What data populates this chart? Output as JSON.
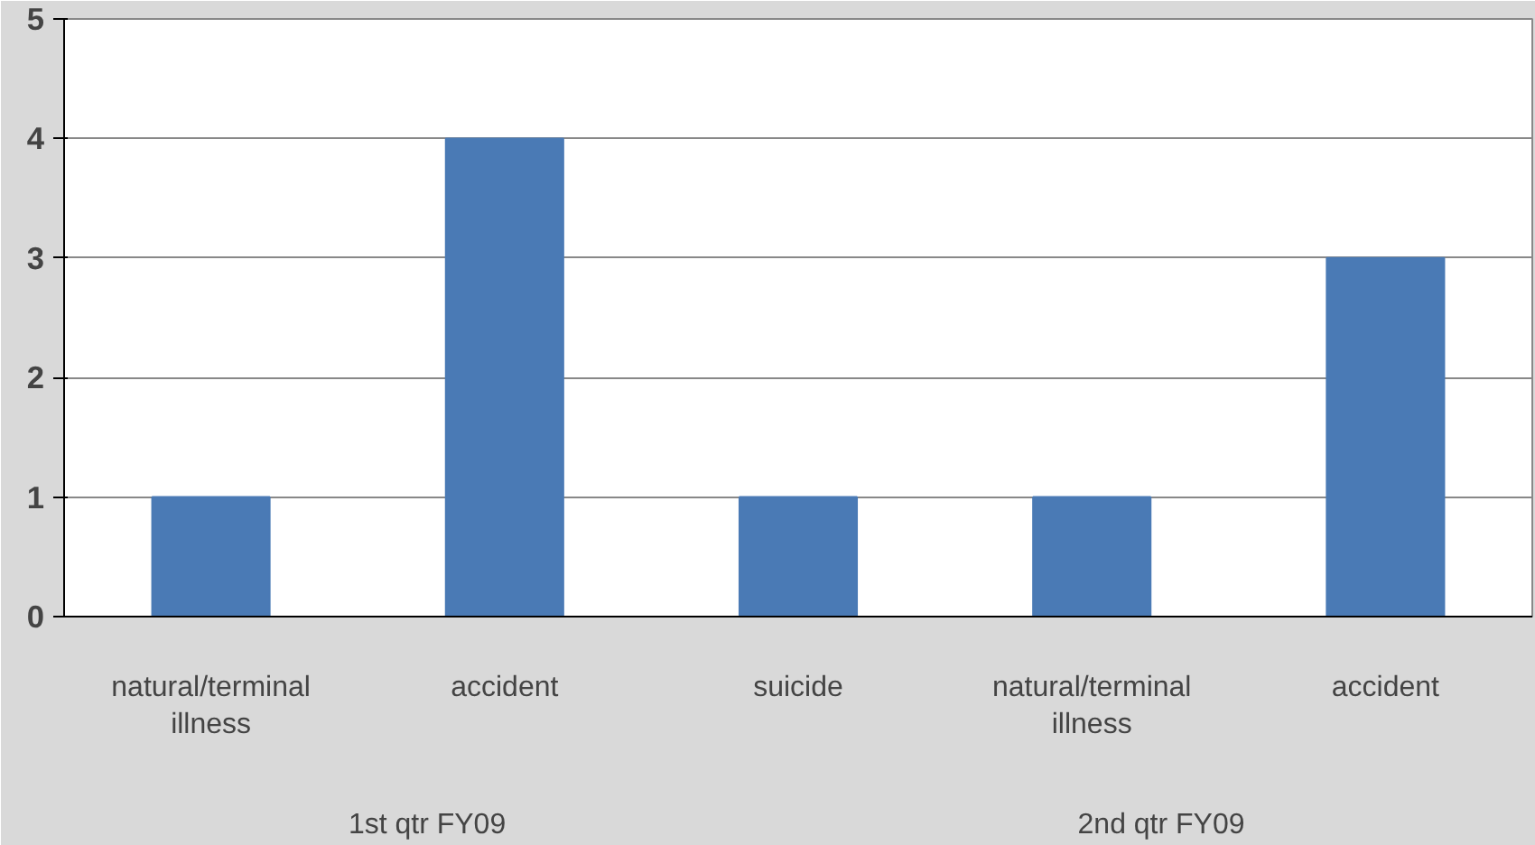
{
  "chart_data": {
    "type": "bar",
    "categories": [
      "natural/terminal illness",
      "accident",
      "suicide",
      "natural/terminal illness",
      "accident"
    ],
    "values": [
      1,
      4,
      1,
      1,
      3
    ],
    "color": "#4a7ab5",
    "ylim": [
      0,
      5
    ],
    "yticks": [
      0,
      1,
      2,
      3,
      4,
      5
    ],
    "grid": "y",
    "annotations": [
      "1st qtr  FY09",
      "2nd qtr  FY09"
    ]
  }
}
